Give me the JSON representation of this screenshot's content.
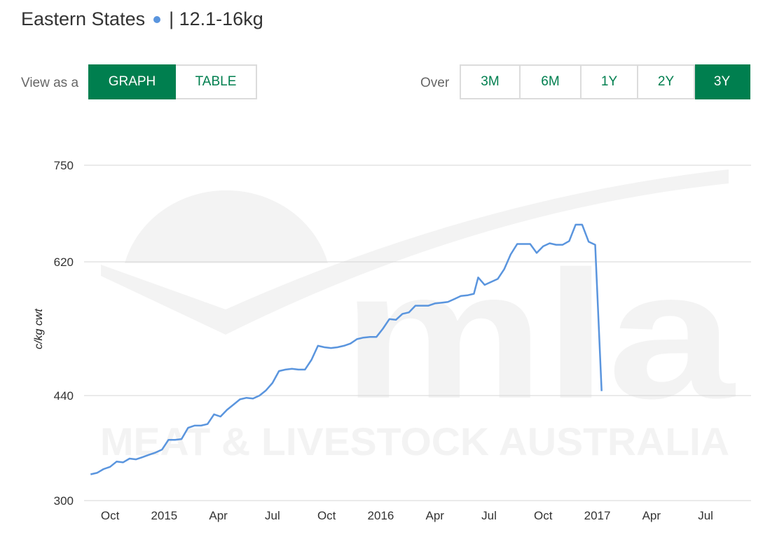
{
  "header": {
    "title": "Eastern States",
    "subtitle": "| 12.1-16kg",
    "series_dot_color": "#5a95de"
  },
  "view_toggle": {
    "label": "View as a",
    "options": [
      "GRAPH",
      "TABLE"
    ],
    "selected": "GRAPH"
  },
  "range_toggle": {
    "label": "Over",
    "options": [
      "3M",
      "6M",
      "1Y",
      "2Y",
      "3Y"
    ],
    "selected": "3Y"
  },
  "colors": {
    "accent": "#007f4f",
    "line": "#5a95de",
    "grid": "#d5d5d5",
    "watermark": "#f3f3f3"
  },
  "watermark": {
    "logo": "mla",
    "text": "MEAT & LIVESTOCK AUSTRALIA"
  },
  "chart_data": {
    "type": "line",
    "ylabel": "c/kg cwt",
    "yticks": [
      300,
      440,
      620,
      750
    ],
    "ylim": [
      300,
      750
    ],
    "xlim": [
      2014.63,
      2017.71
    ],
    "xticks": [
      {
        "label": "Oct",
        "x": 2014.75
      },
      {
        "label": "2015",
        "x": 2015.0
      },
      {
        "label": "Apr",
        "x": 2015.25
      },
      {
        "label": "Jul",
        "x": 2015.5
      },
      {
        "label": "Oct",
        "x": 2015.75
      },
      {
        "label": "2016",
        "x": 2016.0
      },
      {
        "label": "Apr",
        "x": 2016.25
      },
      {
        "label": "Jul",
        "x": 2016.5
      },
      {
        "label": "Oct",
        "x": 2016.75
      },
      {
        "label": "2017",
        "x": 2017.0
      },
      {
        "label": "Apr",
        "x": 2017.25
      },
      {
        "label": "Jul",
        "x": 2017.5
      }
    ],
    "grid": true,
    "legend": "none",
    "series": [
      {
        "color": "#5a95de",
        "points": [
          [
            2014.66,
            335
          ],
          [
            2014.69,
            337
          ],
          [
            2014.72,
            342
          ],
          [
            2014.75,
            345
          ],
          [
            2014.78,
            352
          ],
          [
            2014.81,
            351
          ],
          [
            2014.84,
            356
          ],
          [
            2014.87,
            355
          ],
          [
            2014.9,
            358
          ],
          [
            2014.93,
            361
          ],
          [
            2014.96,
            364
          ],
          [
            2014.99,
            368
          ],
          [
            2015.02,
            381
          ],
          [
            2015.05,
            381
          ],
          [
            2015.08,
            382
          ],
          [
            2015.11,
            397
          ],
          [
            2015.14,
            400
          ],
          [
            2015.17,
            400
          ],
          [
            2015.2,
            402
          ],
          [
            2015.23,
            415
          ],
          [
            2015.26,
            412
          ],
          [
            2015.29,
            421
          ],
          [
            2015.32,
            428
          ],
          [
            2015.35,
            435
          ],
          [
            2015.38,
            437
          ],
          [
            2015.41,
            436
          ],
          [
            2015.44,
            440
          ],
          [
            2015.47,
            447
          ],
          [
            2015.5,
            457
          ],
          [
            2015.53,
            473
          ],
          [
            2015.56,
            475
          ],
          [
            2015.59,
            476
          ],
          [
            2015.62,
            475
          ],
          [
            2015.65,
            475
          ],
          [
            2015.68,
            488
          ],
          [
            2015.71,
            507
          ],
          [
            2015.74,
            505
          ],
          [
            2015.77,
            504
          ],
          [
            2015.8,
            505
          ],
          [
            2015.83,
            507
          ],
          [
            2015.86,
            510
          ],
          [
            2015.89,
            516
          ],
          [
            2015.92,
            518
          ],
          [
            2015.95,
            519
          ],
          [
            2015.98,
            519
          ],
          [
            2016.01,
            530
          ],
          [
            2016.04,
            543
          ],
          [
            2016.07,
            542
          ],
          [
            2016.1,
            550
          ],
          [
            2016.13,
            552
          ],
          [
            2016.16,
            561
          ],
          [
            2016.19,
            561
          ],
          [
            2016.22,
            561
          ],
          [
            2016.25,
            564
          ],
          [
            2016.28,
            565
          ],
          [
            2016.31,
            566
          ],
          [
            2016.34,
            570
          ],
          [
            2016.37,
            574
          ],
          [
            2016.4,
            575
          ],
          [
            2016.43,
            577
          ],
          [
            2016.45,
            599
          ],
          [
            2016.48,
            589
          ],
          [
            2016.51,
            593
          ],
          [
            2016.54,
            597
          ],
          [
            2016.57,
            610
          ],
          [
            2016.6,
            630
          ],
          [
            2016.63,
            644
          ],
          [
            2016.66,
            644
          ],
          [
            2016.69,
            644
          ],
          [
            2016.72,
            632
          ],
          [
            2016.75,
            641
          ],
          [
            2016.78,
            645
          ],
          [
            2016.81,
            643
          ],
          [
            2016.84,
            643
          ],
          [
            2016.87,
            648
          ],
          [
            2016.9,
            670
          ],
          [
            2016.93,
            670
          ],
          [
            2016.96,
            647
          ],
          [
            2016.99,
            643
          ],
          [
            2017.02,
            446
          ]
        ]
      }
    ]
  }
}
